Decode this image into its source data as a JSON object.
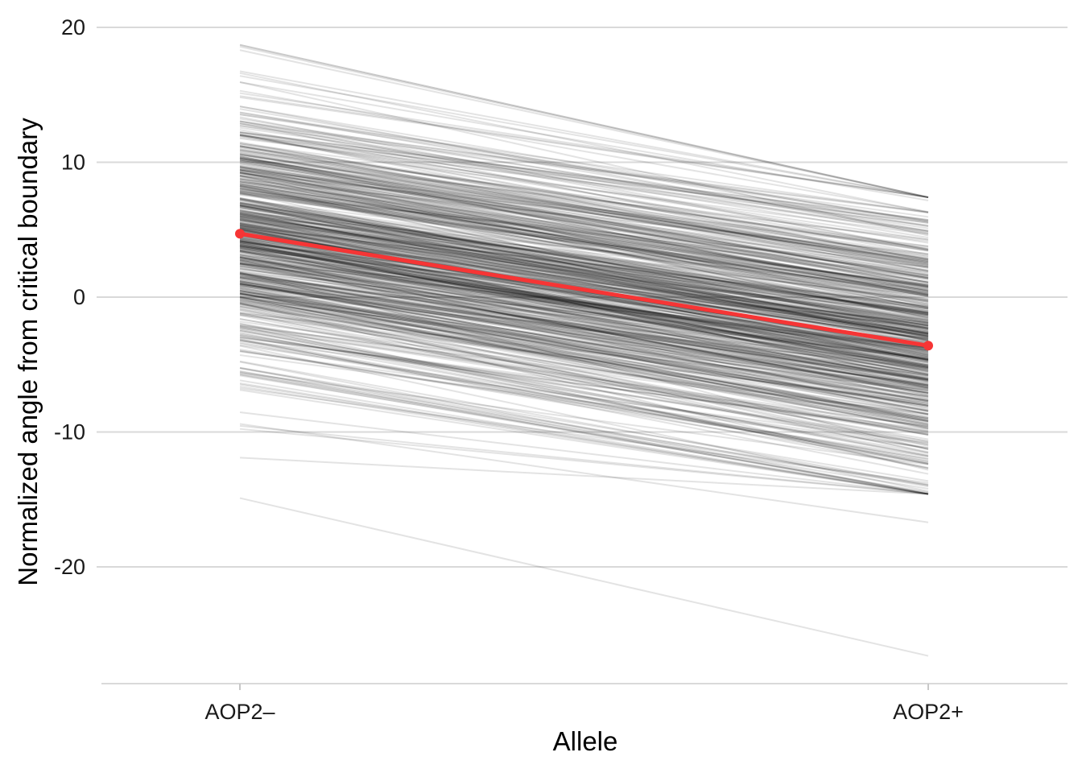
{
  "chart_data": {
    "type": "line",
    "title": "",
    "xlabel": "Allele",
    "ylabel": "Normalized angle from critical boundary",
    "categories": [
      "AOP2–",
      "AOP2+"
    ],
    "ylim": [
      -28.7,
      20
    ],
    "yticks": [
      20,
      10,
      0,
      -10,
      -20
    ],
    "ytick_labels": [
      "20",
      "10",
      "0",
      "-10",
      "-20"
    ],
    "grid": "horizontal",
    "legend": "none",
    "colors": {
      "individual_lines": "#000000",
      "mean_line": "#f63535",
      "grid": "#d9d9d9"
    },
    "mean": {
      "values": [
        4.7,
        -3.6
      ]
    },
    "individual_lines": {
      "count": 600,
      "mean_start": 4.7,
      "start_spread": 5.0,
      "mean_slope": -8.3,
      "slope_spread": 1.2,
      "start_range": [
        -14.9,
        18.7
      ],
      "end_range": [
        -26.6,
        7.4
      ],
      "opacity": 0.11
    }
  }
}
